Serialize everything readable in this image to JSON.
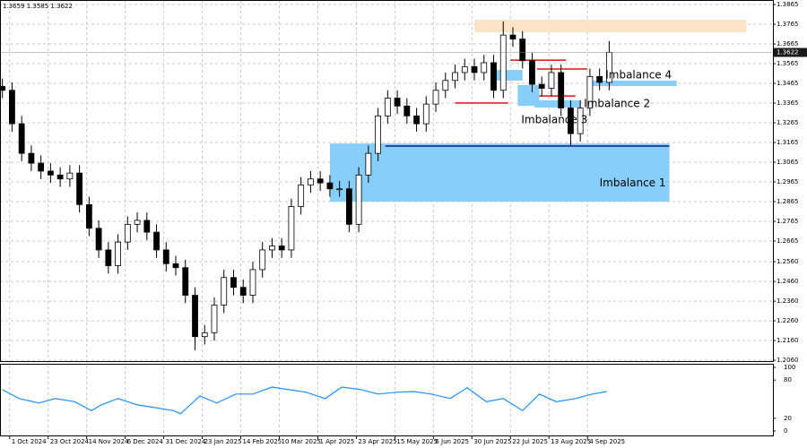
{
  "chart_data": [
    {
      "type": "candlestick",
      "header": "1.3659 1.3585 1.3622",
      "x": [
        0,
        4,
        8,
        12,
        16,
        20,
        24,
        28,
        32,
        36,
        40,
        44,
        48,
        52,
        56,
        60,
        64,
        68,
        72,
        76,
        80,
        84,
        88,
        92,
        96,
        100,
        104,
        108,
        112,
        116,
        120,
        124,
        128,
        132,
        136,
        140,
        144,
        148,
        152,
        156,
        160,
        164,
        168,
        172,
        176,
        180,
        184,
        188,
        192,
        196,
        200,
        204,
        208,
        212,
        216,
        220,
        224,
        228,
        232,
        236,
        240,
        244,
        248,
        252
      ],
      "open": [
        1.345,
        1.343,
        1.326,
        1.311,
        1.306,
        1.302,
        1.3,
        1.298,
        1.301,
        1.285,
        1.273,
        1.262,
        1.254,
        1.266,
        1.275,
        1.277,
        1.271,
        1.262,
        1.255,
        1.253,
        1.239,
        1.218,
        1.22,
        1.234,
        1.248,
        1.243,
        1.239,
        1.252,
        1.262,
        1.264,
        1.262,
        1.284,
        1.295,
        1.298,
        1.296,
        1.293,
        1.293,
        1.275,
        1.3,
        1.311,
        1.33,
        1.339,
        1.335,
        1.33,
        1.326,
        1.336,
        1.343,
        1.348,
        1.352,
        1.355,
        1.352,
        1.357,
        1.343,
        1.371,
        1.369,
        1.358,
        1.346,
        1.344,
        1.352,
        1.334,
        1.321,
        1.334,
        1.35,
        1.347
      ],
      "high": [
        1.349,
        1.347,
        1.33,
        1.315,
        1.31,
        1.306,
        1.304,
        1.305,
        1.305,
        1.289,
        1.277,
        1.266,
        1.27,
        1.279,
        1.281,
        1.281,
        1.275,
        1.266,
        1.259,
        1.257,
        1.243,
        1.224,
        1.238,
        1.252,
        1.252,
        1.247,
        1.256,
        1.266,
        1.268,
        1.268,
        1.288,
        1.299,
        1.302,
        1.302,
        1.3,
        1.297,
        1.297,
        1.304,
        1.315,
        1.334,
        1.343,
        1.343,
        1.339,
        1.334,
        1.34,
        1.347,
        1.352,
        1.356,
        1.359,
        1.359,
        1.361,
        1.361,
        1.378,
        1.375,
        1.373,
        1.362,
        1.35,
        1.356,
        1.356,
        1.338,
        1.338,
        1.354,
        1.354,
        1.368
      ],
      "low": [
        1.339,
        1.322,
        1.307,
        1.302,
        1.298,
        1.296,
        1.294,
        1.294,
        1.281,
        1.269,
        1.258,
        1.25,
        1.25,
        1.262,
        1.271,
        1.267,
        1.258,
        1.251,
        1.249,
        1.235,
        1.211,
        1.214,
        1.216,
        1.23,
        1.239,
        1.235,
        1.235,
        1.248,
        1.258,
        1.258,
        1.258,
        1.28,
        1.291,
        1.292,
        1.289,
        1.289,
        1.271,
        1.271,
        1.296,
        1.307,
        1.326,
        1.331,
        1.326,
        1.322,
        1.322,
        1.332,
        1.339,
        1.344,
        1.348,
        1.348,
        1.348,
        1.339,
        1.339,
        1.365,
        1.354,
        1.342,
        1.34,
        1.34,
        1.33,
        1.315,
        1.317,
        1.33,
        1.343,
        1.343
      ],
      "close": [
        1.343,
        1.326,
        1.311,
        1.306,
        1.302,
        1.3,
        1.298,
        1.301,
        1.285,
        1.273,
        1.262,
        1.254,
        1.266,
        1.275,
        1.277,
        1.271,
        1.262,
        1.255,
        1.253,
        1.239,
        1.218,
        1.22,
        1.234,
        1.248,
        1.243,
        1.239,
        1.252,
        1.262,
        1.264,
        1.262,
        1.284,
        1.295,
        1.298,
        1.296,
        1.293,
        1.293,
        1.275,
        1.3,
        1.311,
        1.33,
        1.339,
        1.335,
        1.33,
        1.326,
        1.336,
        1.343,
        1.348,
        1.352,
        1.355,
        1.352,
        1.357,
        1.343,
        1.371,
        1.369,
        1.358,
        1.346,
        1.344,
        1.352,
        1.334,
        1.321,
        1.334,
        1.35,
        1.347,
        1.3622
      ],
      "xlim": [
        -1,
        320
      ],
      "ylim": [
        1.2056,
        1.3888
      ],
      "yticks": [
        1.3865,
        1.3765,
        1.3665,
        1.3565,
        1.3465,
        1.3365,
        1.3265,
        1.3165,
        1.3065,
        1.2965,
        1.2865,
        1.2765,
        1.2665,
        {
          "value": 1.256,
          "label": "1.2560"
        },
        {
          "value": 1.246,
          "label": "1.2460"
        },
        {
          "value": 1.236,
          "label": "1.2360"
        },
        {
          "value": 1.226,
          "label": "1.2260"
        },
        {
          "value": 1.216,
          "label": "1.2160"
        },
        {
          "value": 1.206,
          "label": "1.2060"
        }
      ],
      "xticks": [
        {
          "value": 3,
          "label": "1 Oct 2024"
        },
        {
          "value": 19,
          "label": "23 Oct 2024"
        },
        {
          "value": 35,
          "label": "14 Nov 2024"
        },
        {
          "value": 51,
          "label": "6 Dec 2024"
        },
        {
          "value": 67,
          "label": "31 Dec 2024"
        },
        {
          "value": 83,
          "label": "23 Jan 2025"
        },
        {
          "value": 99,
          "label": "14 Feb 2025"
        },
        {
          "value": 115,
          "label": "10 Mar 2025"
        },
        {
          "value": 131,
          "label": "1 Apr 2025"
        },
        {
          "value": 147,
          "label": "23 Apr 2025"
        },
        {
          "value": 163,
          "label": "15 May 2025"
        },
        {
          "value": 179,
          "label": "6 Jun 2025"
        },
        {
          "value": 195,
          "label": "30 Jun 2025"
        },
        {
          "value": 211,
          "label": "22 Jul 2025"
        },
        {
          "value": 227,
          "label": "13 Aug 2025"
        },
        {
          "value": 243,
          "label": "4 Sep 2025"
        }
      ],
      "grid": true,
      "last_price": 1.3622,
      "zones": [
        {
          "label": "Imbalance 1",
          "x": [
            136,
            277
          ],
          "y": [
            1.2865,
            1.316
          ],
          "color": "#87cefa"
        },
        {
          "label": "Imbalance 4",
          "x": [
            243,
            280
          ],
          "y": [
            1.3451,
            1.3479
          ],
          "color": "#87cefa"
        },
        {
          "label": "Imbalance 2",
          "x": [
            221,
            240
          ],
          "y": [
            1.3342,
            1.3379
          ],
          "color": "#87cefa"
        },
        {
          "label": "Imbalance 3",
          "x": [
            214,
            223
          ],
          "y": [
            1.3351,
            1.3456
          ],
          "color": "#87cefa"
        },
        {
          "x": [
            203,
            216
          ],
          "y": [
            1.3479,
            1.3533
          ],
          "color": "#87cefa"
        },
        {
          "x": [
            196,
            309
          ],
          "y": [
            1.3724,
            1.3788
          ],
          "color": "#fbe3c8"
        }
      ],
      "levels": [
        {
          "x": [
            159,
            277
          ],
          "y": 1.3147,
          "color": "#0a1e8c"
        },
        {
          "x": [
            188,
            210
          ],
          "y": 1.3365,
          "color": "#e01010"
        },
        {
          "x": [
            211,
            234
          ],
          "y": 1.3583,
          "color": "#e01010"
        },
        {
          "x": [
            222,
            243
          ],
          "y": 1.3538,
          "color": "#e01010"
        },
        {
          "x": [
            223,
            238
          ],
          "y": 1.3401,
          "color": "#e01010"
        }
      ]
    },
    {
      "type": "line",
      "x": [
        0,
        7,
        15,
        22,
        30,
        37,
        41,
        48,
        56,
        63,
        71,
        74,
        82,
        89,
        97,
        104,
        112,
        119,
        126,
        134,
        141,
        149,
        156,
        164,
        171,
        178,
        186,
        193,
        201,
        208,
        216,
        223,
        230,
        238,
        245,
        251
      ],
      "values": [
        65,
        51,
        44,
        51,
        46,
        32,
        41,
        51,
        41,
        37,
        32,
        27,
        55,
        44,
        58,
        58,
        69,
        65,
        61,
        51,
        69,
        65,
        58,
        61,
        62,
        58,
        51,
        68,
        46,
        51,
        32,
        58,
        46,
        51,
        58,
        62
      ],
      "color": "#1e90ff",
      "xlim": [
        -1,
        320
      ],
      "ylim": [
        -7,
        105.6
      ],
      "yticks": [
        100,
        80,
        20,
        0
      ]
    }
  ]
}
